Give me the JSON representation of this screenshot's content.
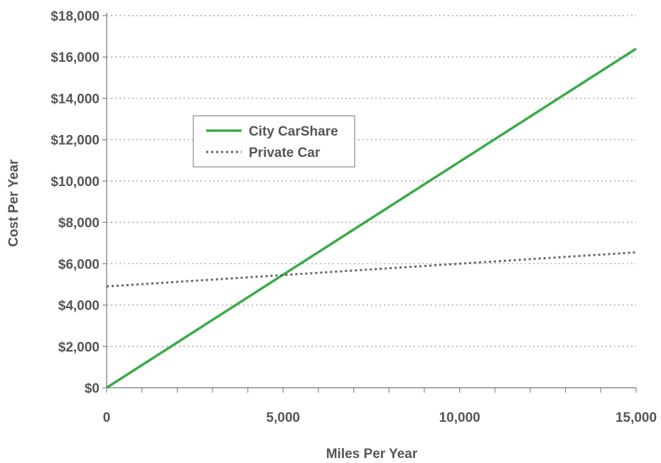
{
  "chart_data": {
    "type": "line",
    "title": "",
    "xlabel": "Miles Per Year",
    "ylabel": "Cost Per Year",
    "xlim": [
      0,
      15000
    ],
    "ylim": [
      0,
      18000
    ],
    "x_ticks": [
      0,
      5000,
      10000,
      15000
    ],
    "x_tick_labels": [
      "0",
      "5,000",
      "10,000",
      "15,000"
    ],
    "y_ticks": [
      0,
      2000,
      4000,
      6000,
      8000,
      10000,
      12000,
      14000,
      16000,
      18000
    ],
    "y_tick_labels": [
      "$0",
      "$2,000",
      "$4,000",
      "$6,000",
      "$8,000",
      "$10,000",
      "$12,000",
      "$14,000",
      "$16,000",
      "$18,000"
    ],
    "grid": "horizontal dotted",
    "legend_position": "upper-left",
    "series": [
      {
        "name": "City CarShare",
        "color": "#3aaa48",
        "style": "solid",
        "x": [
          0,
          15000
        ],
        "y": [
          0,
          16400
        ]
      },
      {
        "name": "Private Car",
        "color": "#666666",
        "style": "dotted",
        "x": [
          0,
          15000
        ],
        "y": [
          4900,
          6550
        ]
      }
    ]
  }
}
